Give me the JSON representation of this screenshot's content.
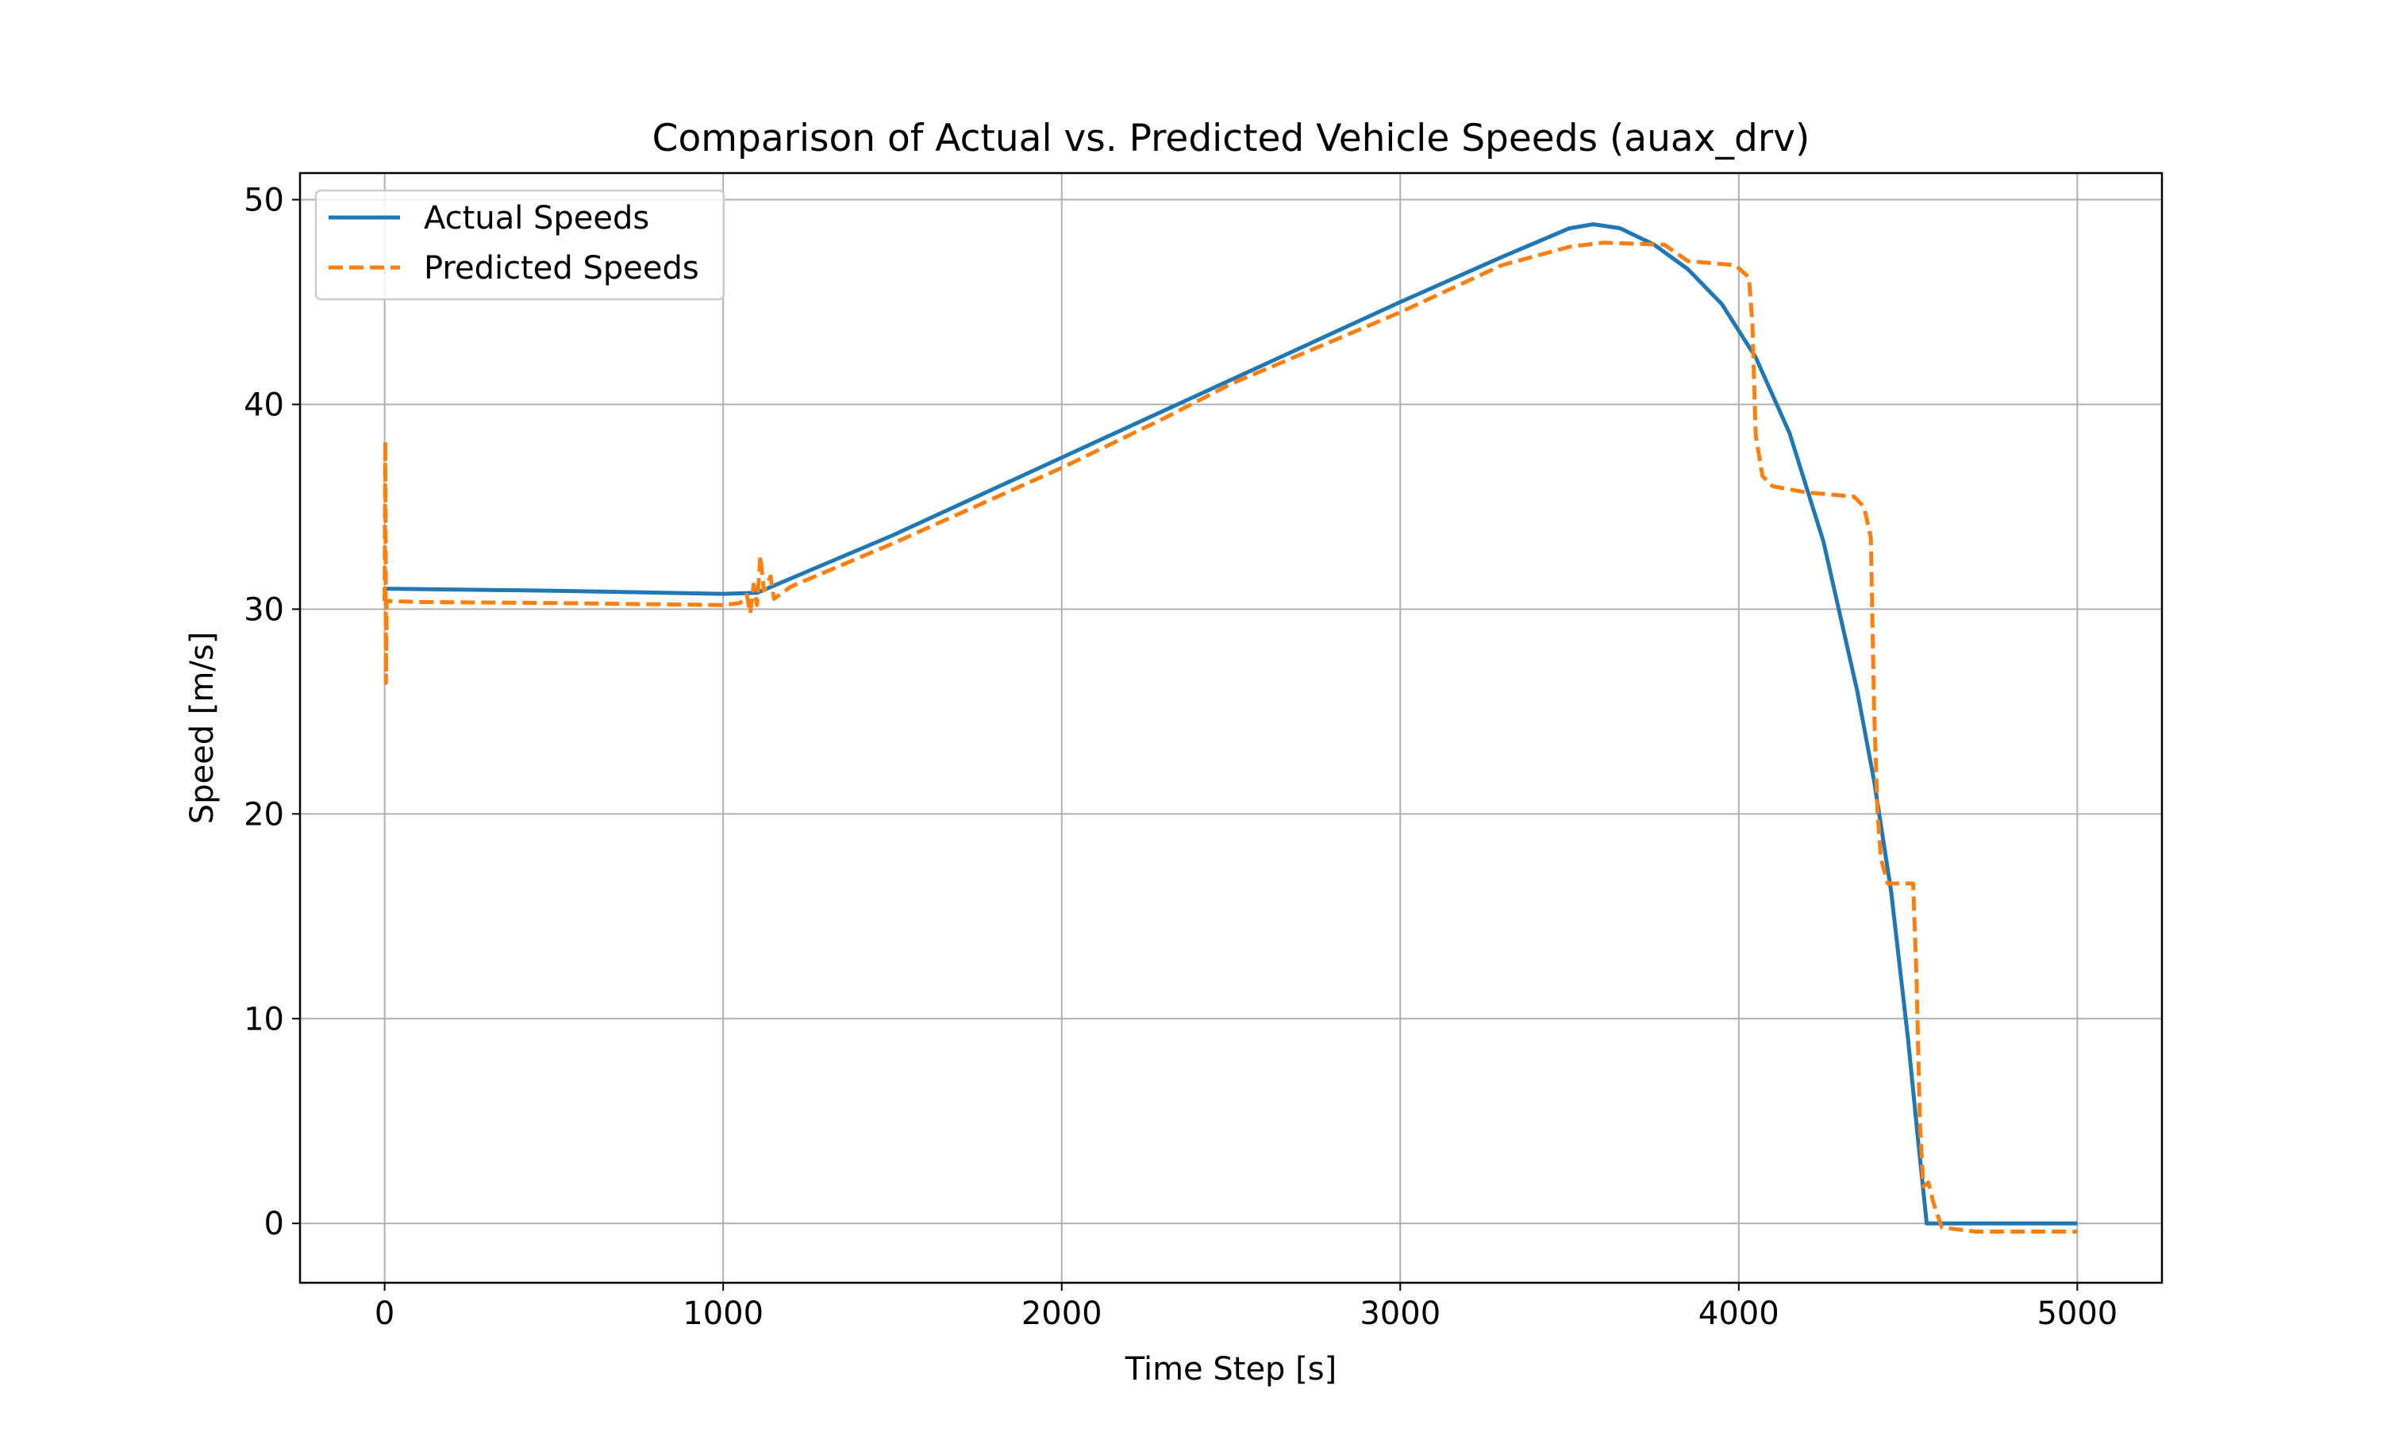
{
  "chart_data": {
    "type": "line",
    "title": "Comparison of Actual vs. Predicted Vehicle Speeds (auax_drv)",
    "xlabel": "Time Step [s]",
    "ylabel": "Speed [m/s]",
    "xlim": [
      -250,
      5250
    ],
    "ylim": [
      -2.9,
      51.3
    ],
    "x_ticks": [
      0,
      1000,
      2000,
      3000,
      4000,
      5000
    ],
    "y_ticks": [
      0,
      10,
      20,
      30,
      40,
      50
    ],
    "grid": true,
    "legend_position": "upper-left",
    "series": [
      {
        "name": "Actual Speeds",
        "style": "solid",
        "color": "#1f77b4",
        "points": [
          [
            0,
            31.0
          ],
          [
            500,
            30.9
          ],
          [
            1000,
            30.75
          ],
          [
            1100,
            30.8
          ],
          [
            1500,
            33.6
          ],
          [
            2000,
            37.4
          ],
          [
            2500,
            41.2
          ],
          [
            3000,
            45.0
          ],
          [
            3300,
            47.2
          ],
          [
            3500,
            48.6
          ],
          [
            3570,
            48.8
          ],
          [
            3650,
            48.6
          ],
          [
            3750,
            47.8
          ],
          [
            3850,
            46.6
          ],
          [
            3950,
            44.9
          ],
          [
            4050,
            42.3
          ],
          [
            4150,
            38.6
          ],
          [
            4250,
            33.3
          ],
          [
            4350,
            26.0
          ],
          [
            4400,
            21.6
          ],
          [
            4450,
            16.2
          ],
          [
            4500,
            9.0
          ],
          [
            4530,
            4.0
          ],
          [
            4555,
            0.0
          ],
          [
            4700,
            0.0
          ],
          [
            5000,
            0.0
          ]
        ]
      },
      {
        "name": "Predicted Speeds",
        "style": "dashed",
        "color": "#ff7f0e",
        "points": [
          [
            0,
            30.4
          ],
          [
            2,
            38.2
          ],
          [
            4,
            26.4
          ],
          [
            6,
            30.4
          ],
          [
            100,
            30.35
          ],
          [
            500,
            30.3
          ],
          [
            1000,
            30.2
          ],
          [
            1050,
            30.3
          ],
          [
            1070,
            30.7
          ],
          [
            1080,
            29.8
          ],
          [
            1090,
            31.2
          ],
          [
            1100,
            30.2
          ],
          [
            1110,
            32.6
          ],
          [
            1120,
            30.9
          ],
          [
            1140,
            31.6
          ],
          [
            1150,
            30.5
          ],
          [
            1200,
            31.1
          ],
          [
            1500,
            33.2
          ],
          [
            2000,
            36.9
          ],
          [
            2300,
            39.3
          ],
          [
            2500,
            41.0
          ],
          [
            3000,
            44.5
          ],
          [
            3300,
            46.8
          ],
          [
            3500,
            47.7
          ],
          [
            3600,
            47.9
          ],
          [
            3780,
            47.8
          ],
          [
            3850,
            47.0
          ],
          [
            3990,
            46.8
          ],
          [
            4030,
            46.2
          ],
          [
            4040,
            44.0
          ],
          [
            4050,
            38.5
          ],
          [
            4070,
            36.5
          ],
          [
            4100,
            36.0
          ],
          [
            4200,
            35.7
          ],
          [
            4340,
            35.5
          ],
          [
            4370,
            35.0
          ],
          [
            4390,
            33.5
          ],
          [
            4400,
            25.0
          ],
          [
            4410,
            20.0
          ],
          [
            4420,
            17.8
          ],
          [
            4440,
            16.6
          ],
          [
            4515,
            16.6
          ],
          [
            4525,
            12.0
          ],
          [
            4535,
            5.0
          ],
          [
            4545,
            1.8
          ],
          [
            4560,
            2.0
          ],
          [
            4575,
            1.0
          ],
          [
            4600,
            -0.2
          ],
          [
            4700,
            -0.4
          ],
          [
            5000,
            -0.4
          ]
        ]
      }
    ]
  }
}
